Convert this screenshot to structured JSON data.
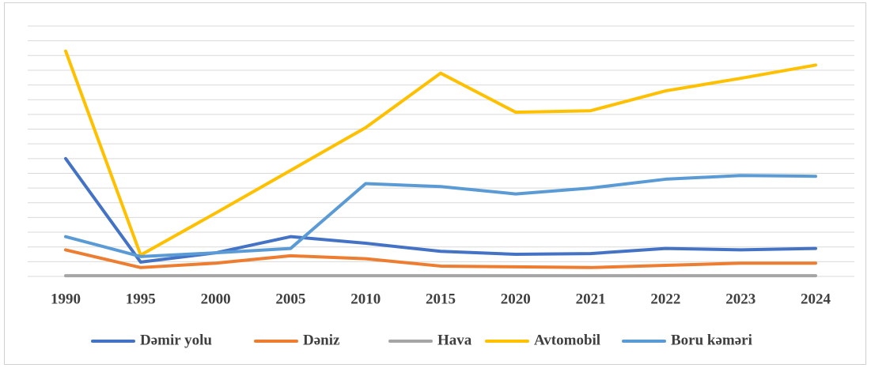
{
  "chart_data": {
    "type": "line",
    "categories": [
      "1990",
      "1995",
      "2000",
      "2005",
      "2010",
      "2015",
      "2020",
      "2021",
      "2022",
      "2023",
      "2024"
    ],
    "series": [
      {
        "name": "Dəmir yolu",
        "color": "#4472c4",
        "values": [
          8.0,
          0.97,
          1.6,
          2.7,
          2.25,
          1.7,
          1.5,
          1.55,
          1.9,
          1.8,
          1.9
        ]
      },
      {
        "name": "Dəniz",
        "color": "#ed7d31",
        "values": [
          1.8,
          0.6,
          0.9,
          1.4,
          1.2,
          0.7,
          0.65,
          0.6,
          0.75,
          0.9,
          0.9
        ]
      },
      {
        "name": "Hava",
        "color": "#a5a5a5",
        "values": [
          0.05,
          0.05,
          0.05,
          0.05,
          0.05,
          0.05,
          0.05,
          0.05,
          0.05,
          0.05,
          0.05
        ]
      },
      {
        "name": "Avtomobil",
        "color": "#ffc000",
        "values": [
          15.3,
          1.45,
          4.3,
          7.2,
          10.1,
          13.8,
          11.15,
          11.25,
          12.6,
          13.45,
          14.35
        ]
      },
      {
        "name": "Boru kəməri",
        "color": "#5b9bd5",
        "values": [
          2.7,
          1.35,
          1.6,
          1.9,
          6.3,
          6.1,
          5.6,
          6.0,
          6.6,
          6.85,
          6.8
        ]
      }
    ],
    "ylim": [
      0,
      17
    ],
    "yticks": [
      0,
      1,
      2,
      3,
      4,
      5,
      6,
      7,
      8,
      9,
      10,
      11,
      12,
      13,
      14,
      15,
      16,
      17
    ],
    "grid": true,
    "legend": "bottom"
  }
}
